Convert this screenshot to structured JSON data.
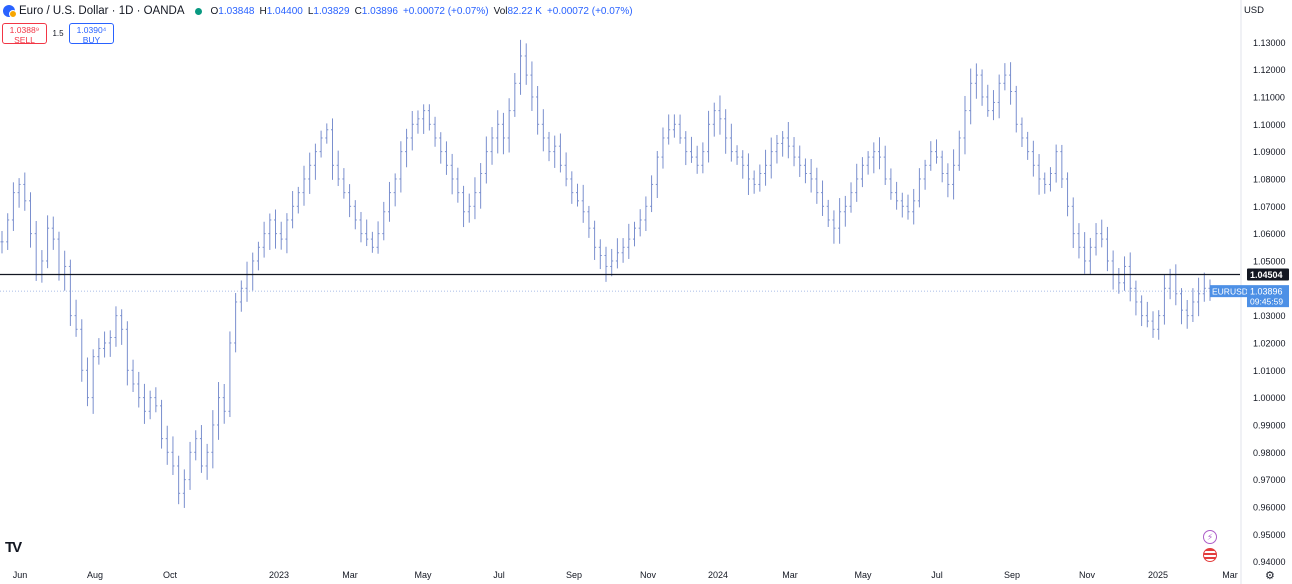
{
  "header": {
    "symbol_title": "Euro / U.S. Dollar · 1D · OANDA",
    "open_label": "O",
    "open": "1.03848",
    "high_label": "H",
    "high": "1.04400",
    "low_label": "L",
    "low": "1.03829",
    "close_label": "C",
    "close": "1.03896",
    "change": "+0.00072 (+0.07%)",
    "vol_label": "Vol",
    "vol": "82.22 K",
    "vol_change": "+0.00072 (+0.07%)"
  },
  "trade": {
    "sell_price": "1.0388⁹",
    "sell_label": "SELL",
    "spread": "1.5",
    "buy_price": "1.0390⁴",
    "buy_label": "BUY"
  },
  "currency": "USD",
  "colors": {
    "bars": "#7a8fce",
    "hline": "#131722",
    "accent": "#2962ff",
    "price_label": "#4d90e6"
  },
  "icons": {
    "logo": "tradingview-logo-icon",
    "alert": "lightning-icon",
    "flag": "us-flag-icon",
    "settings": "gear-icon"
  },
  "chart_data": {
    "type": "ohlc",
    "symbol": "EURUSD",
    "x_ticks": [
      "Jun",
      "Aug",
      "Oct",
      "2023",
      "Mar",
      "May",
      "Jul",
      "Sep",
      "Nov",
      "2024",
      "Mar",
      "May",
      "Jul",
      "Sep",
      "Nov",
      "2025",
      "Mar"
    ],
    "y_ticks": [
      "1.13000",
      "1.12000",
      "1.11000",
      "1.10000",
      "1.09000",
      "1.08000",
      "1.07000",
      "1.06000",
      "1.05000",
      "1.04000",
      "1.03000",
      "1.02000",
      "1.01000",
      "1.00000",
      "0.99000",
      "0.98000",
      "0.97000",
      "0.96000",
      "0.95000",
      "0.94000"
    ],
    "ylim": [
      0.9395,
      1.1345
    ],
    "horizontal_line": {
      "value": 1.04504,
      "label": "1.04504"
    },
    "last_price": {
      "value": 1.03896,
      "label": "1.03896",
      "countdown": "09:45:59",
      "symbol_label": "EURUSD"
    },
    "closes": [
      1.057,
      1.065,
      1.075,
      1.078,
      1.072,
      1.06,
      1.045,
      1.05,
      1.062,
      1.058,
      1.045,
      1.048,
      1.03,
      1.025,
      1.01,
      1.0,
      1.015,
      1.018,
      1.02,
      1.022,
      1.03,
      1.025,
      1.01,
      1.005,
      1.0,
      0.995,
      1.0,
      0.997,
      0.985,
      0.98,
      0.975,
      0.965,
      0.97,
      0.98,
      0.985,
      0.975,
      0.98,
      0.99,
      1.0,
      0.995,
      1.02,
      1.035,
      1.04,
      1.045,
      1.05,
      1.055,
      1.06,
      1.065,
      1.06,
      1.058,
      1.065,
      1.07,
      1.075,
      1.08,
      1.085,
      1.09,
      1.095,
      1.098,
      1.085,
      1.08,
      1.075,
      1.07,
      1.065,
      1.06,
      1.058,
      1.055,
      1.06,
      1.068,
      1.075,
      1.08,
      1.09,
      1.095,
      1.1,
      1.102,
      1.105,
      1.1,
      1.095,
      1.09,
      1.085,
      1.08,
      1.075,
      1.068,
      1.07,
      1.075,
      1.082,
      1.09,
      1.095,
      1.1,
      1.095,
      1.105,
      1.115,
      1.125,
      1.118,
      1.11,
      1.1,
      1.095,
      1.09,
      1.092,
      1.085,
      1.08,
      1.075,
      1.072,
      1.068,
      1.062,
      1.055,
      1.052,
      1.048,
      1.05,
      1.053,
      1.055,
      1.058,
      1.062,
      1.065,
      1.07,
      1.078,
      1.088,
      1.095,
      1.098,
      1.1,
      1.095,
      1.09,
      1.088,
      1.085,
      1.09,
      1.1,
      1.105,
      1.102,
      1.095,
      1.09,
      1.088,
      1.085,
      1.08,
      1.078,
      1.082,
      1.085,
      1.09,
      1.093,
      1.095,
      1.092,
      1.088,
      1.085,
      1.082,
      1.08,
      1.075,
      1.07,
      1.065,
      1.062,
      1.068,
      1.07,
      1.075,
      1.08,
      1.085,
      1.088,
      1.09,
      1.088,
      1.08,
      1.075,
      1.072,
      1.07,
      1.068,
      1.072,
      1.08,
      1.085,
      1.09,
      1.088,
      1.082,
      1.078,
      1.085,
      1.095,
      1.105,
      1.115,
      1.118,
      1.11,
      1.105,
      1.108,
      1.115,
      1.118,
      1.112,
      1.1,
      1.095,
      1.09,
      1.085,
      1.08,
      1.078,
      1.082,
      1.09,
      1.08,
      1.07,
      1.06,
      1.055,
      1.05,
      1.055,
      1.06,
      1.058,
      1.05,
      1.045,
      1.042,
      1.048,
      1.04,
      1.035,
      1.03,
      1.028,
      1.025,
      1.03,
      1.04,
      1.045,
      1.038,
      1.032,
      1.03,
      1.035,
      1.038,
      1.04,
      1.03896
    ]
  }
}
